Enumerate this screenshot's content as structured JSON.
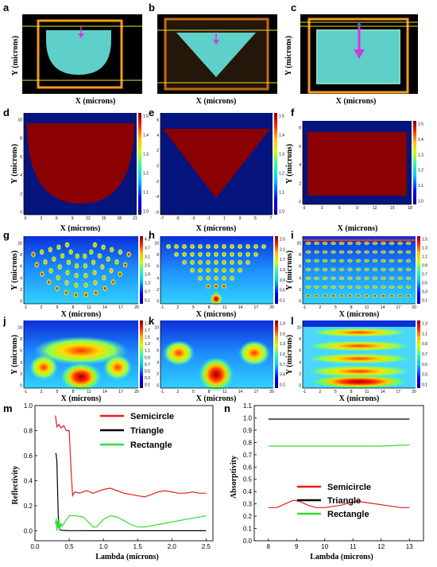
{
  "panel_labels": [
    "a",
    "b",
    "c",
    "d",
    "e",
    "f",
    "g",
    "h",
    "i",
    "j",
    "k",
    "l",
    "m",
    "n"
  ],
  "axis_labels": {
    "x_microns": "X (microns)",
    "y_microns": "Y (microns)",
    "reflectivity": "Reflectivity",
    "absorptivity": "Absorptivity",
    "lambda": "Lambda (microns)"
  },
  "colors": {
    "structure_fill": "#5ecfc9",
    "frame_orange": "#f39a1a",
    "line_yellow": "#eedd33",
    "arrow_magenta": "#d23ad6",
    "field_dark_red": "#8b0000",
    "field_dark_blue": "#06147d",
    "semicircle": "#e0201a",
    "triangle": "#000000",
    "rectangle": "#33dd33"
  },
  "index_maps": {
    "d": {
      "x_ticks": [
        "0",
        "3",
        "6",
        "9",
        "12",
        "15",
        "18",
        "21"
      ],
      "y_ticks": [
        "0",
        "2",
        "4",
        "6",
        "8",
        "10"
      ],
      "cb_ticks": [
        "1.5",
        "1.4",
        "1.3",
        "1.2",
        "1.1",
        "1.0"
      ]
    },
    "e": {
      "x_ticks": [
        "-7",
        "-5",
        "-3",
        "-1",
        "1",
        "3",
        "5",
        "7"
      ],
      "y_ticks": [
        "-6",
        "-4",
        "-2",
        "0",
        "2",
        "4",
        "6"
      ],
      "cb_ticks": [
        "1.5",
        "1.4",
        "1.3",
        "1.2",
        "1.1",
        "1.0"
      ]
    },
    "f": {
      "x_ticks": [
        "0",
        "3",
        "6",
        "9",
        "12",
        "15",
        "18"
      ],
      "y_ticks": [
        "0",
        "2",
        "4",
        "6",
        "8"
      ],
      "cb_ticks": [
        "1.5",
        "1.4",
        "1.3",
        "1.2",
        "1.1",
        "1.0"
      ]
    }
  },
  "field_maps": {
    "g": {
      "x_ticks": [
        "-1",
        "2",
        "5",
        "8",
        "11",
        "14",
        "17",
        "20"
      ],
      "y_ticks": [
        "0",
        "2",
        "4",
        "6",
        "8",
        "10"
      ],
      "cb_ticks": [
        "4.3",
        "3.7",
        "3.1",
        "2.5",
        "1.9",
        "1.3",
        "0.7",
        "0.1"
      ]
    },
    "h": {
      "x_ticks": [
        "-1",
        "2",
        "5",
        "8",
        "11",
        "14",
        "17",
        "20"
      ],
      "y_ticks": [
        "0",
        "2",
        "4",
        "6",
        "8",
        "10"
      ],
      "cb_ticks": [
        "2.5",
        "2.1",
        "1.7",
        "1.3",
        "0.9",
        "0.5",
        "0.1"
      ]
    },
    "i": {
      "x_ticks": [
        "-1",
        "2",
        "5",
        "8",
        "11",
        "14",
        "17",
        "20"
      ],
      "y_ticks": [
        "0",
        "2",
        "4",
        "6",
        "8",
        "10"
      ],
      "cb_ticks": [
        "1.5",
        "1.3",
        "1.1",
        "0.9",
        "0.7",
        "0.5",
        "0.3",
        "0.1"
      ]
    },
    "j": {
      "x_ticks": [
        "-1",
        "2",
        "5",
        "8",
        "11",
        "14",
        "17",
        "20"
      ],
      "y_ticks": [
        "0",
        "2",
        "4",
        "6",
        "8",
        "10"
      ],
      "cb_ticks": [
        "1.9",
        "1.7",
        "1.5",
        "1.3",
        "1.1",
        "0.9",
        "0.7",
        "0.5",
        "0.3",
        "0.1"
      ]
    },
    "k": {
      "x_ticks": [
        "-1",
        "2",
        "5",
        "8",
        "11",
        "14",
        "17",
        "20"
      ],
      "y_ticks": [
        "0",
        "2",
        "4",
        "6",
        "8",
        "10"
      ],
      "cb_ticks": [
        "1.9",
        "1.6",
        "1.3",
        "1.0",
        "0.7",
        "0.4",
        "0.1"
      ]
    },
    "l": {
      "x_ticks": [
        "-1",
        "2",
        "5",
        "8",
        "11",
        "14",
        "17",
        "20"
      ],
      "y_ticks": [
        "0",
        "2",
        "4",
        "6",
        "8",
        "10"
      ],
      "cb_ticks": [
        "1.3",
        "1.1",
        "0.9",
        "0.7",
        "0.5",
        "0.3",
        "0.1"
      ]
    }
  },
  "chart_data": [
    {
      "type": "line",
      "panel": "m",
      "title": "",
      "xlabel": "Lambda (microns)",
      "ylabel": "Reflectivity",
      "xlim": [
        0,
        2.6
      ],
      "ylim": [
        -0.08,
        1.0
      ],
      "x_ticks": [
        0.0,
        0.5,
        1.0,
        1.5,
        2.0,
        2.5
      ],
      "y_ticks": [
        0.0,
        0.2,
        0.4,
        0.6,
        0.8,
        1.0
      ],
      "x_tick_labels": [
        "0.0",
        "0.5",
        "1.0",
        "1.5",
        "2.0",
        "2.5"
      ],
      "y_tick_labels": [
        "0.0",
        "0.2",
        "0.4",
        "0.6",
        "0.8",
        "1.0"
      ],
      "legend": "top-right",
      "series": [
        {
          "name": "Semicircle",
          "color": "#e0201a",
          "x": [
            0.3,
            0.32,
            0.35,
            0.38,
            0.42,
            0.46,
            0.5,
            0.53,
            0.55,
            0.58,
            0.65,
            0.75,
            0.85,
            0.9,
            1.0,
            1.1,
            1.2,
            1.3,
            1.4,
            1.5,
            1.6,
            1.7,
            1.8,
            1.9,
            2.0,
            2.1,
            2.2,
            2.3,
            2.4,
            2.5
          ],
          "y": [
            0.92,
            0.83,
            0.85,
            0.82,
            0.84,
            0.8,
            0.8,
            0.45,
            0.28,
            0.31,
            0.3,
            0.32,
            0.3,
            0.31,
            0.33,
            0.34,
            0.32,
            0.3,
            0.29,
            0.28,
            0.27,
            0.29,
            0.31,
            0.32,
            0.31,
            0.3,
            0.3,
            0.31,
            0.3,
            0.3
          ]
        },
        {
          "name": "Triangle",
          "color": "#000000",
          "x": [
            0.3,
            0.31,
            0.32,
            0.33,
            0.34,
            0.35,
            0.36,
            0.38,
            0.4,
            0.45,
            0.5,
            0.6,
            0.8,
            1.0,
            1.5,
            2.0,
            2.5
          ],
          "y": [
            0.62,
            0.61,
            0.55,
            0.35,
            0.12,
            0.04,
            0.01,
            0.005,
            0.003,
            0.002,
            0.001,
            0.001,
            0.0,
            0.0,
            0.0,
            0.0,
            0.0
          ]
        },
        {
          "name": "Rectangle",
          "color": "#33dd33",
          "x": [
            0.3,
            0.31,
            0.32,
            0.33,
            0.34,
            0.35,
            0.36,
            0.37,
            0.38,
            0.39,
            0.4,
            0.45,
            0.5,
            0.55,
            0.6,
            0.7,
            0.8,
            0.85,
            0.9,
            0.95,
            1.0,
            1.1,
            1.2,
            1.3,
            1.4,
            1.5,
            1.6,
            1.7,
            1.8,
            1.9,
            2.0,
            2.1,
            2.2,
            2.3,
            2.4,
            2.5
          ],
          "y": [
            0.05,
            0.1,
            0.0,
            0.08,
            0.02,
            0.09,
            0.01,
            0.06,
            0.03,
            0.05,
            0.04,
            0.08,
            0.12,
            0.12,
            0.12,
            0.11,
            0.06,
            0.03,
            0.03,
            0.06,
            0.09,
            0.12,
            0.11,
            0.08,
            0.05,
            0.03,
            0.03,
            0.04,
            0.05,
            0.06,
            0.07,
            0.08,
            0.09,
            0.1,
            0.11,
            0.12
          ]
        }
      ]
    },
    {
      "type": "line",
      "panel": "n",
      "title": "",
      "xlabel": "Lambda (microns)",
      "ylabel": "Absorptivity",
      "xlim": [
        7.5,
        13.5
      ],
      "ylim": [
        0.0,
        1.1
      ],
      "x_ticks": [
        8,
        9,
        10,
        11,
        12,
        13
      ],
      "y_ticks": [
        0.0,
        0.1,
        0.2,
        0.3,
        0.4,
        0.5,
        0.6,
        0.7,
        0.8,
        0.9,
        1.0,
        1.1
      ],
      "x_tick_labels": [
        "8",
        "9",
        "10",
        "11",
        "12",
        "13"
      ],
      "y_tick_labels": [
        "0.0",
        "0.1",
        "0.2",
        "0.3",
        "0.4",
        "0.5",
        "0.6",
        "0.7",
        "0.8",
        "0.9",
        "1.0",
        "1.1"
      ],
      "legend": "center-right",
      "series": [
        {
          "name": "Semicircle",
          "color": "#e0201a",
          "x": [
            8.0,
            8.3,
            8.6,
            8.9,
            9.1,
            9.4,
            9.7,
            10.0,
            10.3,
            10.6,
            10.9,
            11.2,
            11.5,
            11.8,
            12.1,
            12.4,
            12.7,
            13.0
          ],
          "y": [
            0.27,
            0.27,
            0.3,
            0.33,
            0.32,
            0.29,
            0.27,
            0.27,
            0.28,
            0.29,
            0.31,
            0.32,
            0.31,
            0.3,
            0.29,
            0.28,
            0.27,
            0.27
          ]
        },
        {
          "name": "Triangle",
          "color": "#000000",
          "x": [
            8.0,
            9.0,
            10.0,
            11.0,
            12.0,
            13.0
          ],
          "y": [
            0.99,
            0.99,
            0.99,
            0.99,
            0.99,
            0.99
          ]
        },
        {
          "name": "Rectangle",
          "color": "#33dd33",
          "x": [
            8.0,
            9.0,
            10.0,
            11.0,
            12.0,
            13.0
          ],
          "y": [
            0.77,
            0.77,
            0.77,
            0.77,
            0.77,
            0.78
          ]
        }
      ]
    }
  ]
}
